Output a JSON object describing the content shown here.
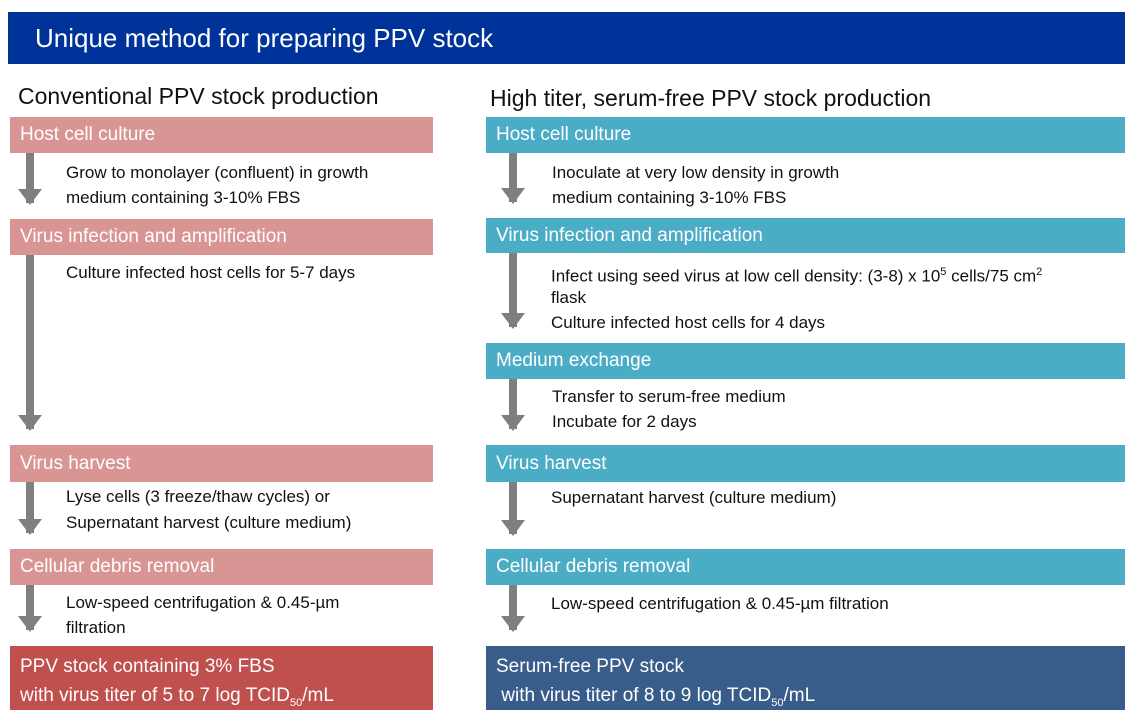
{
  "title": "Unique method for preparing PPV stock",
  "left": {
    "title": "Conventional PPV stock production",
    "steps": [
      "Host cell culture",
      "Virus infection and amplification",
      "Virus harvest",
      "Cellular debris removal"
    ],
    "notes": [
      "Grow to monolayer (confluent) in growth",
      "medium containing 3-10% FBS",
      "Culture infected host cells for 5-7 days",
      "Lyse cells (3 freeze/thaw cycles) or",
      "Supernatant harvest (culture medium)",
      "Low-speed centrifugation & 0.45-µm",
      "filtration"
    ],
    "final": {
      "line1": "PPV stock containing 3% FBS",
      "line2a": "with virus titer of 5 to 7 log TCID",
      "sub": "50",
      "line2b": "/mL"
    }
  },
  "right": {
    "title": "High titer, serum-free PPV stock production",
    "steps": [
      "Host cell culture",
      "Virus infection and amplification",
      "Medium exchange",
      "Virus harvest",
      "Cellular debris removal"
    ],
    "notes": [
      "Inoculate at very low density in growth",
      "medium containing 3-10% FBS",
      "Infect using seed virus at low cell density: (3-8) x 10",
      "5",
      " cells/75 cm",
      "2",
      "flask",
      "Culture infected host cells for 4 days",
      "Transfer to serum-free medium",
      "Incubate for 2 days",
      "Supernatant harvest (culture medium)",
      "Low-speed centrifugation & 0.45-µm filtration"
    ],
    "final": {
      "line1": "Serum-free  PPV stock",
      "line2a": "with virus titer of 8 to 9 log TCID",
      "sub": "50",
      "line2b": "/mL"
    }
  },
  "colors": {
    "header": "#003399",
    "left_step": "#d99594",
    "left_final": "#c0504d",
    "right_step": "#4bacc6",
    "right_final": "#385d8a",
    "arrow": "#7f7f7f"
  }
}
